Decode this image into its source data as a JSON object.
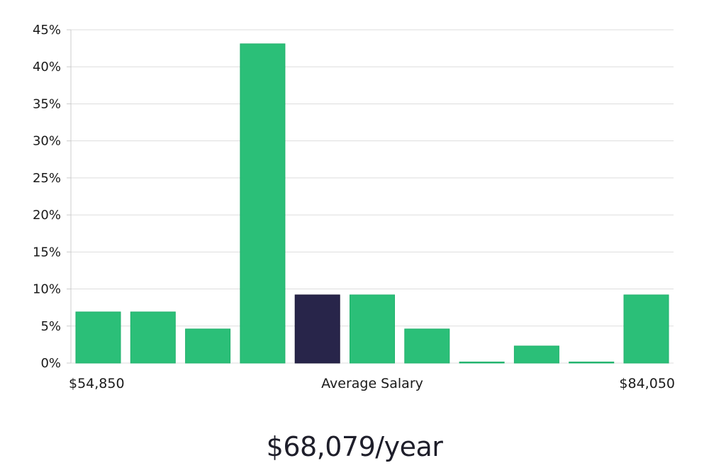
{
  "chart_data": {
    "type": "bar",
    "values": [
      6.9,
      6.9,
      4.6,
      43.1,
      9.2,
      9.2,
      4.6,
      0,
      2.3,
      0,
      9.2
    ],
    "highlight_index": 4,
    "ylim": [
      0,
      45
    ],
    "yticks": [
      "0%",
      "5%",
      "10%",
      "15%",
      "20%",
      "25%",
      "30%",
      "35%",
      "40%",
      "45%"
    ],
    "ytick_values": [
      0,
      5,
      10,
      15,
      20,
      25,
      30,
      35,
      40,
      45
    ],
    "grid": true,
    "x_min_label": "$54,850",
    "x_center_label": "Average Salary",
    "x_max_label": "$84,050"
  },
  "colors": {
    "bar": "#2bbf78",
    "highlight": "#28254a",
    "grid": "#dddddd",
    "axis": "#cccccc"
  },
  "average_salary": "$68,079/year"
}
